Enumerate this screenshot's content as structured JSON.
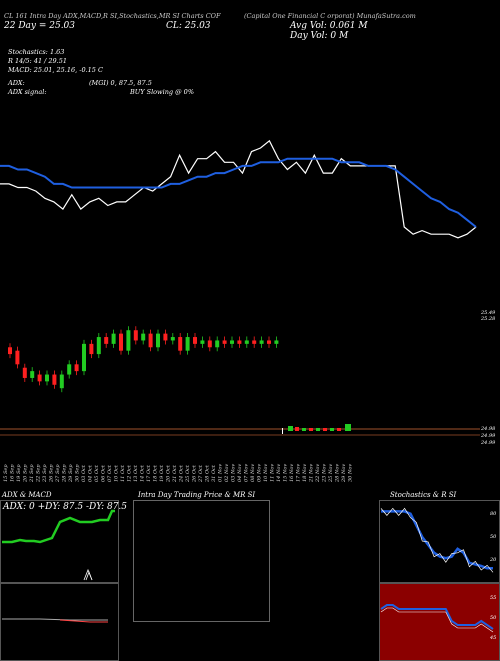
{
  "header": {
    "line1_left": "CL 161 Intra Day ADX,MACD,R SI,Stochastics,MR SI Charts COF",
    "line1_right": "(Capital One Financial C orporat) MunafaSutra.com",
    "line2_left": "22 Day = 25.03",
    "close": "CL: 25.03",
    "avg_vol": "Avg Vol: 0.061 M",
    "day_vol": "Day Vol: 0 M",
    "stoch": "Stochastics: 1.63",
    "r_line": "R 14/5: 41 / 29.51",
    "macd": "MACD: 25.01, 25.16, -0.15 C",
    "adx": "ADX:",
    "mgi": "(MGI) 0, 87.5, 87.5",
    "adx_signal": "ADX signal:",
    "buy_signal": "BUY Slowing @ 0%"
  },
  "price_axis": {
    "right_labels": [
      "25.49",
      "25.28"
    ]
  },
  "volume_axis": {
    "labels": [
      "24.98",
      "24.99",
      "24.99"
    ]
  },
  "date_labels": [
    "15 Sep",
    "16 Sep",
    "19 Sep",
    "20 Sep",
    "21 Sep",
    "22 Sep",
    "23 Sep",
    "26 Sep",
    "27 Sep",
    "28 Sep",
    "29 Sep",
    "30 Sep",
    "03 Oct",
    "04 Oct",
    "05 Oct",
    "06 Oct",
    "07 Oct",
    "10 Oct",
    "11 Oct",
    "12 Oct",
    "13 Oct",
    "14 Oct",
    "17 Oct",
    "18 Oct",
    "19 Oct",
    "20 Oct",
    "21 Oct",
    "24 Oct",
    "25 Oct",
    "26 Oct",
    "27 Oct",
    "28 Oct",
    "31 Oct",
    "01 Nov",
    "02 Nov",
    "03 Nov",
    "04 Nov",
    "07 Nov",
    "08 Nov",
    "09 Nov",
    "10 Nov",
    "11 Nov",
    "14 Nov",
    "15 Nov",
    "16 Nov",
    "17 Nov",
    "18 Nov",
    "21 Nov",
    "22 Nov",
    "23 Nov",
    "25 Nov",
    "28 Nov",
    "29 Nov",
    "30 Nov"
  ],
  "panels": {
    "adx_title": "ADX & MACD",
    "adx_values": "ADX: 0 +DY: 87.5 -DY: 87.5",
    "intraday_title": "Intra Day Trading Price & MR SI",
    "stoch_title": "Stochastics & R SI",
    "stoch_ticks": [
      "80",
      "50",
      "20"
    ],
    "rsi_ticks": [
      "55",
      "50",
      "45"
    ]
  },
  "colors": {
    "ma": "#1f5fe0",
    "price": "#ffffff",
    "up": "#22cc22",
    "down": "#ff2020",
    "adx": "#22cc22",
    "rsi_bg": "#8b0000"
  },
  "chart_data": {
    "type": "line",
    "title": "",
    "series": [
      {
        "values": [
          25.43,
          25.43,
          25.42,
          25.42,
          25.41,
          25.39,
          25.38,
          25.36,
          25.4,
          25.36,
          25.38,
          25.39,
          25.37,
          25.38,
          25.38,
          25.4,
          25.42,
          25.41,
          25.43,
          25.45,
          25.51,
          25.46,
          25.5,
          25.5,
          25.52,
          25.49,
          25.49,
          25.46,
          25.52,
          25.53,
          25.55,
          25.5,
          25.47,
          25.49,
          25.46,
          25.51,
          25.46,
          25.46,
          25.5,
          25.48,
          25.48,
          25.48,
          25.48,
          25.48,
          25.48,
          25.31,
          25.29,
          25.3,
          25.29,
          25.29,
          25.29,
          25.28,
          25.29,
          25.31
        ]
      },
      {
        "values": [
          25.48,
          25.48,
          25.47,
          25.47,
          25.46,
          25.45,
          25.43,
          25.43,
          25.42,
          25.42,
          25.42,
          25.42,
          25.42,
          25.42,
          25.42,
          25.42,
          25.42,
          25.42,
          25.42,
          25.43,
          25.43,
          25.44,
          25.45,
          25.45,
          25.46,
          25.46,
          25.47,
          25.48,
          25.48,
          25.49,
          25.49,
          25.49,
          25.5,
          25.5,
          25.5,
          25.5,
          25.5,
          25.5,
          25.49,
          25.49,
          25.49,
          25.48,
          25.48,
          25.48,
          25.47,
          25.45,
          25.43,
          25.41,
          25.39,
          25.38,
          25.36,
          25.35,
          25.33,
          25.31
        ]
      }
    ],
    "candles": [
      {
        "o": 25.04,
        "c": 25.02
      },
      {
        "o": 25.03,
        "c": 24.99
      },
      {
        "o": 24.98,
        "c": 24.95
      },
      {
        "o": 24.95,
        "c": 24.97
      },
      {
        "o": 24.96,
        "c": 24.94
      },
      {
        "o": 24.94,
        "c": 24.96
      },
      {
        "o": 24.96,
        "c": 24.93
      },
      {
        "o": 24.92,
        "c": 24.96
      },
      {
        "o": 24.96,
        "c": 24.99
      },
      {
        "o": 24.99,
        "c": 24.97
      },
      {
        "o": 24.97,
        "c": 25.05
      },
      {
        "o": 25.05,
        "c": 25.02
      },
      {
        "o": 25.02,
        "c": 25.07
      },
      {
        "o": 25.07,
        "c": 25.05
      },
      {
        "o": 25.05,
        "c": 25.08
      },
      {
        "o": 25.08,
        "c": 25.03
      },
      {
        "o": 25.03,
        "c": 25.09
      },
      {
        "o": 25.09,
        "c": 25.06
      },
      {
        "o": 25.06,
        "c": 25.08
      },
      {
        "o": 25.08,
        "c": 25.04
      },
      {
        "o": 25.04,
        "c": 25.08
      },
      {
        "o": 25.08,
        "c": 25.06
      },
      {
        "o": 25.06,
        "c": 25.07
      },
      {
        "o": 25.07,
        "c": 25.03
      },
      {
        "o": 25.03,
        "c": 25.07
      },
      {
        "o": 25.07,
        "c": 25.05
      },
      {
        "o": 25.05,
        "c": 25.06
      },
      {
        "o": 25.06,
        "c": 25.04
      },
      {
        "o": 25.04,
        "c": 25.06
      },
      {
        "o": 25.06,
        "c": 25.05
      },
      {
        "o": 25.05,
        "c": 25.06
      },
      {
        "o": 25.06,
        "c": 25.05
      },
      {
        "o": 25.05,
        "c": 25.06
      },
      {
        "o": 25.06,
        "c": 25.05
      },
      {
        "o": 25.05,
        "c": 25.06
      },
      {
        "o": 25.06,
        "c": 25.05
      },
      {
        "o": 25.05,
        "c": 25.06
      }
    ],
    "stoch_k": [
      88,
      88,
      88,
      88,
      88,
      85,
      70,
      55,
      45,
      35,
      30,
      28,
      30,
      40,
      35,
      22,
      20,
      18,
      15,
      15
    ],
    "rsi": [
      52,
      53,
      53,
      52,
      52,
      52,
      52,
      52,
      52,
      52,
      52,
      52,
      49,
      48,
      48,
      48,
      48,
      49,
      48,
      47
    ],
    "adx_plus": [
      -8,
      -8,
      -8,
      -8,
      -8,
      -7,
      -7,
      -7,
      -7,
      -7,
      -6,
      -6,
      -6,
      -7,
      -7,
      -7,
      0,
      0,
      0,
      0,
      0,
      0,
      -7,
      -7,
      0,
      0,
      0
    ]
  }
}
